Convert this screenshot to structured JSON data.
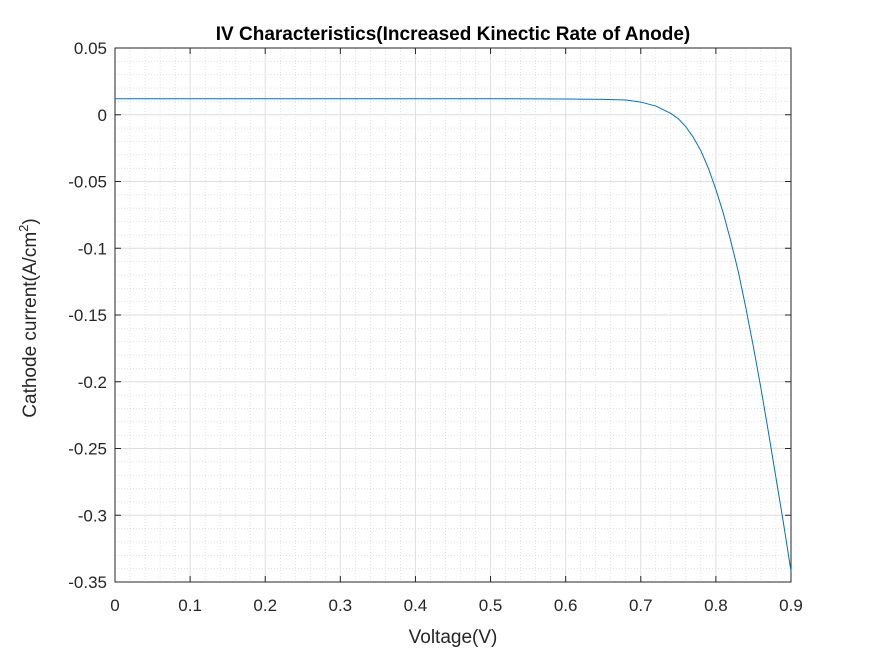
{
  "chart_data": {
    "type": "line",
    "title": "IV Characteristics(Increased Kinectic Rate of Anode)",
    "xlabel": "Voltage(V)",
    "ylabel_main": "Cathode current(A/cm",
    "ylabel_sup": "2",
    "ylabel_close": ")",
    "xlim": [
      0,
      0.9
    ],
    "ylim": [
      -0.35,
      0.05
    ],
    "xticks": [
      0,
      0.1,
      0.2,
      0.3,
      0.4,
      0.5,
      0.6,
      0.7,
      0.8,
      0.9
    ],
    "xtick_labels": [
      "0",
      "0.1",
      "0.2",
      "0.3",
      "0.4",
      "0.5",
      "0.6",
      "0.7",
      "0.8",
      "0.9"
    ],
    "yticks": [
      0.05,
      0,
      -0.05,
      -0.1,
      -0.15,
      -0.2,
      -0.25,
      -0.3,
      -0.35
    ],
    "ytick_labels": [
      "0.05",
      "0",
      "-0.05",
      "-0.1",
      "-0.15",
      "-0.2",
      "-0.25",
      "-0.3",
      "-0.35"
    ],
    "grid": true,
    "minor_grid": true,
    "series": [
      {
        "color": "#0072bd",
        "x": [
          0,
          0.1,
          0.2,
          0.3,
          0.4,
          0.5,
          0.6,
          0.65,
          0.68,
          0.7,
          0.72,
          0.74,
          0.75,
          0.76,
          0.77,
          0.78,
          0.79,
          0.8,
          0.81,
          0.82,
          0.83,
          0.84,
          0.85,
          0.86,
          0.87,
          0.88,
          0.89,
          0.9
        ],
        "y": [
          0.012,
          0.012,
          0.012,
          0.012,
          0.012,
          0.012,
          0.0118,
          0.0115,
          0.011,
          0.0095,
          0.0065,
          0.001,
          -0.003,
          -0.009,
          -0.017,
          -0.027,
          -0.04,
          -0.056,
          -0.074,
          -0.095,
          -0.118,
          -0.145,
          -0.174,
          -0.205,
          -0.238,
          -0.272,
          -0.306,
          -0.342
        ]
      }
    ]
  }
}
